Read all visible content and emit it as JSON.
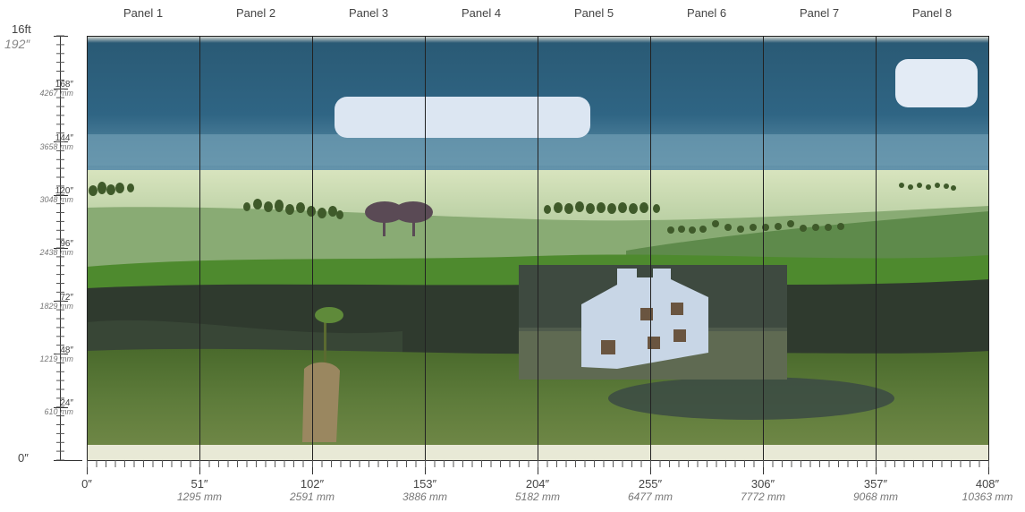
{
  "panels": [
    "Panel 1",
    "Panel 2",
    "Panel 3",
    "Panel 4",
    "Panel 5",
    "Panel 6",
    "Panel 7",
    "Panel 8"
  ],
  "vertical_scale": {
    "top_feet": "16ft",
    "top_inches": "192″",
    "zero": "0″",
    "marks": [
      {
        "in": "168″",
        "mm": "4267 mm"
      },
      {
        "in": "144″",
        "mm": "3658 mm"
      },
      {
        "in": "120″",
        "mm": "3048 mm"
      },
      {
        "in": "96″",
        "mm": "2438 mm"
      },
      {
        "in": "72″",
        "mm": "1829 mm"
      },
      {
        "in": "48″",
        "mm": "1219 mm"
      },
      {
        "in": "24″",
        "mm": "610 mm"
      }
    ]
  },
  "horizontal_scale": {
    "marks": [
      {
        "in": "0″",
        "mm": ""
      },
      {
        "in": "51″",
        "mm": "1295 mm"
      },
      {
        "in": "102″",
        "mm": "2591 mm"
      },
      {
        "in": "153″",
        "mm": "3886 mm"
      },
      {
        "in": "204″",
        "mm": "5182 mm"
      },
      {
        "in": "255″",
        "mm": "6477 mm"
      },
      {
        "in": "306″",
        "mm": "7772 mm"
      },
      {
        "in": "357″",
        "mm": "9068 mm"
      },
      {
        "in": "408″",
        "mm": "10363 mm"
      }
    ]
  },
  "colors": {
    "sky_dark": "#2c5f7a",
    "sky_light": "#5f8fa8",
    "meadow_pale": "#d7e3bd",
    "field_mid": "#7aa05a",
    "grass_bright": "#4f8a2f",
    "forest_dark": "#2e3a2d",
    "grass_low": "#5c7a38",
    "ground_pale": "#e9ead8",
    "cloud": "#dfe8f4",
    "house": "#c9d6e6",
    "ruler": "#333333"
  }
}
